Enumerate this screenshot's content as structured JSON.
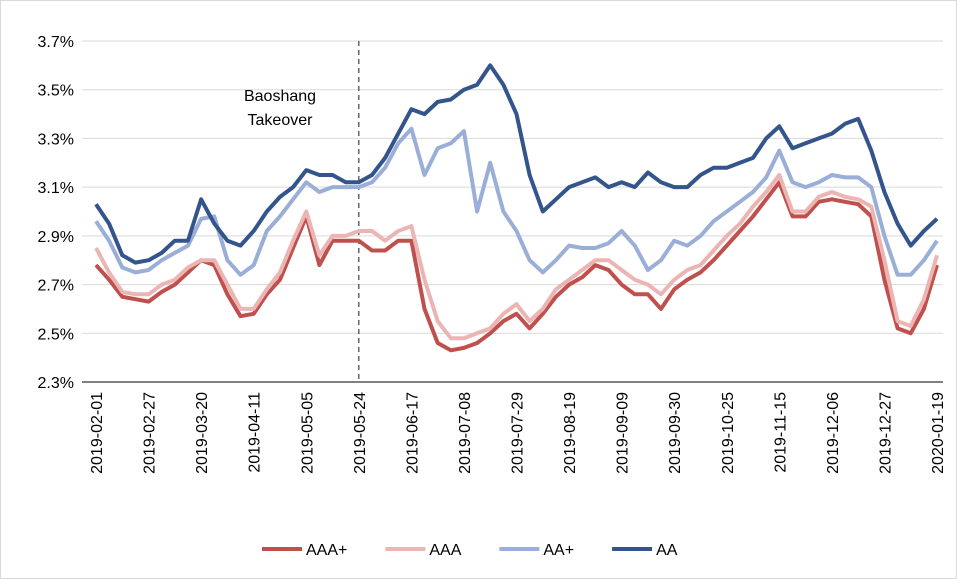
{
  "chart_data": {
    "type": "line",
    "categories": [
      "2019-02-01",
      null,
      null,
      null,
      "2019-02-27",
      null,
      null,
      null,
      "2019-03-20",
      null,
      null,
      null,
      "2019-04-11",
      null,
      null,
      null,
      "2019-05-05",
      null,
      null,
      null,
      "2019-05-24",
      null,
      null,
      null,
      "2019-06-17",
      null,
      null,
      null,
      "2019-07-08",
      null,
      null,
      null,
      "2019-07-29",
      null,
      null,
      null,
      "2019-08-19",
      null,
      null,
      null,
      "2019-09-09",
      null,
      null,
      null,
      "2019-09-30",
      null,
      null,
      null,
      "2019-10-25",
      null,
      null,
      null,
      "2019-11-15",
      null,
      null,
      null,
      "2019-12-06",
      null,
      null,
      null,
      "2019-12-27",
      null,
      null,
      null,
      "2020-01-19"
    ],
    "series": [
      {
        "name": "AAA+",
        "color": "#c0504d",
        "values": [
          2.78,
          2.72,
          2.65,
          2.64,
          2.63,
          2.67,
          2.7,
          2.75,
          2.8,
          2.78,
          2.66,
          2.57,
          2.58,
          2.66,
          2.72,
          2.85,
          2.98,
          2.78,
          2.88,
          2.88,
          2.88,
          2.84,
          2.84,
          2.88,
          2.88,
          2.6,
          2.46,
          2.43,
          2.44,
          2.46,
          2.5,
          2.55,
          2.58,
          2.52,
          2.58,
          2.65,
          2.7,
          2.73,
          2.78,
          2.76,
          2.7,
          2.66,
          2.66,
          2.6,
          2.68,
          2.72,
          2.75,
          2.8,
          2.86,
          2.92,
          2.98,
          3.05,
          3.12,
          2.98,
          2.98,
          3.04,
          3.05,
          3.04,
          3.03,
          2.98,
          2.72,
          2.52,
          2.5,
          2.6,
          2.78
        ]
      },
      {
        "name": "AAA",
        "color": "#ebb5b4",
        "values": [
          2.85,
          2.75,
          2.67,
          2.66,
          2.66,
          2.7,
          2.72,
          2.77,
          2.8,
          2.8,
          2.7,
          2.6,
          2.6,
          2.68,
          2.75,
          2.88,
          3.0,
          2.82,
          2.9,
          2.9,
          2.92,
          2.92,
          2.88,
          2.92,
          2.94,
          2.72,
          2.55,
          2.48,
          2.48,
          2.5,
          2.52,
          2.58,
          2.62,
          2.55,
          2.6,
          2.68,
          2.72,
          2.76,
          2.8,
          2.8,
          2.76,
          2.72,
          2.7,
          2.66,
          2.72,
          2.76,
          2.78,
          2.84,
          2.9,
          2.95,
          3.02,
          3.08,
          3.15,
          3.0,
          3.0,
          3.06,
          3.08,
          3.06,
          3.05,
          3.02,
          2.8,
          2.55,
          2.53,
          2.64,
          2.82
        ]
      },
      {
        "name": "AA+",
        "color": "#9aafd8",
        "values": [
          2.96,
          2.88,
          2.77,
          2.75,
          2.76,
          2.8,
          2.83,
          2.86,
          2.97,
          2.98,
          2.8,
          2.74,
          2.78,
          2.92,
          2.98,
          3.05,
          3.12,
          3.08,
          3.1,
          3.1,
          3.1,
          3.12,
          3.18,
          3.28,
          3.34,
          3.15,
          3.26,
          3.28,
          3.33,
          3.0,
          3.2,
          3.0,
          2.92,
          2.8,
          2.75,
          2.8,
          2.86,
          2.85,
          2.85,
          2.87,
          2.92,
          2.86,
          2.76,
          2.8,
          2.88,
          2.86,
          2.9,
          2.96,
          3.0,
          3.04,
          3.08,
          3.14,
          3.25,
          3.12,
          3.1,
          3.12,
          3.15,
          3.14,
          3.14,
          3.1,
          2.9,
          2.74,
          2.74,
          2.8,
          2.88
        ]
      },
      {
        "name": "AA",
        "color": "#33558b",
        "values": [
          3.03,
          2.95,
          2.82,
          2.79,
          2.8,
          2.83,
          2.88,
          2.88,
          3.05,
          2.95,
          2.88,
          2.86,
          2.92,
          3.0,
          3.06,
          3.1,
          3.17,
          3.15,
          3.15,
          3.12,
          3.12,
          3.15,
          3.22,
          3.32,
          3.42,
          3.4,
          3.45,
          3.46,
          3.5,
          3.52,
          3.6,
          3.52,
          3.4,
          3.15,
          3.0,
          3.05,
          3.1,
          3.12,
          3.14,
          3.1,
          3.12,
          3.1,
          3.16,
          3.12,
          3.1,
          3.1,
          3.15,
          3.18,
          3.18,
          3.2,
          3.22,
          3.3,
          3.35,
          3.26,
          3.28,
          3.3,
          3.32,
          3.36,
          3.38,
          3.25,
          3.08,
          2.95,
          2.86,
          2.92,
          2.97
        ]
      }
    ],
    "ylim": [
      2.3,
      3.7
    ],
    "yticks": [
      {
        "value": 2.3,
        "label": "2.3%"
      },
      {
        "value": 2.5,
        "label": "2.5%"
      },
      {
        "value": 2.7,
        "label": "2.7%"
      },
      {
        "value": 2.9,
        "label": "2.9%"
      },
      {
        "value": 3.1,
        "label": "3.1%"
      },
      {
        "value": 3.3,
        "label": "3.3%"
      },
      {
        "value": 3.5,
        "label": "3.5%"
      },
      {
        "value": 3.7,
        "label": "3.7%"
      }
    ],
    "grid": true,
    "legend": "bottom",
    "annotation": {
      "text": [
        "Baoshang",
        "Takeover"
      ],
      "x": "2019-05-24"
    }
  }
}
